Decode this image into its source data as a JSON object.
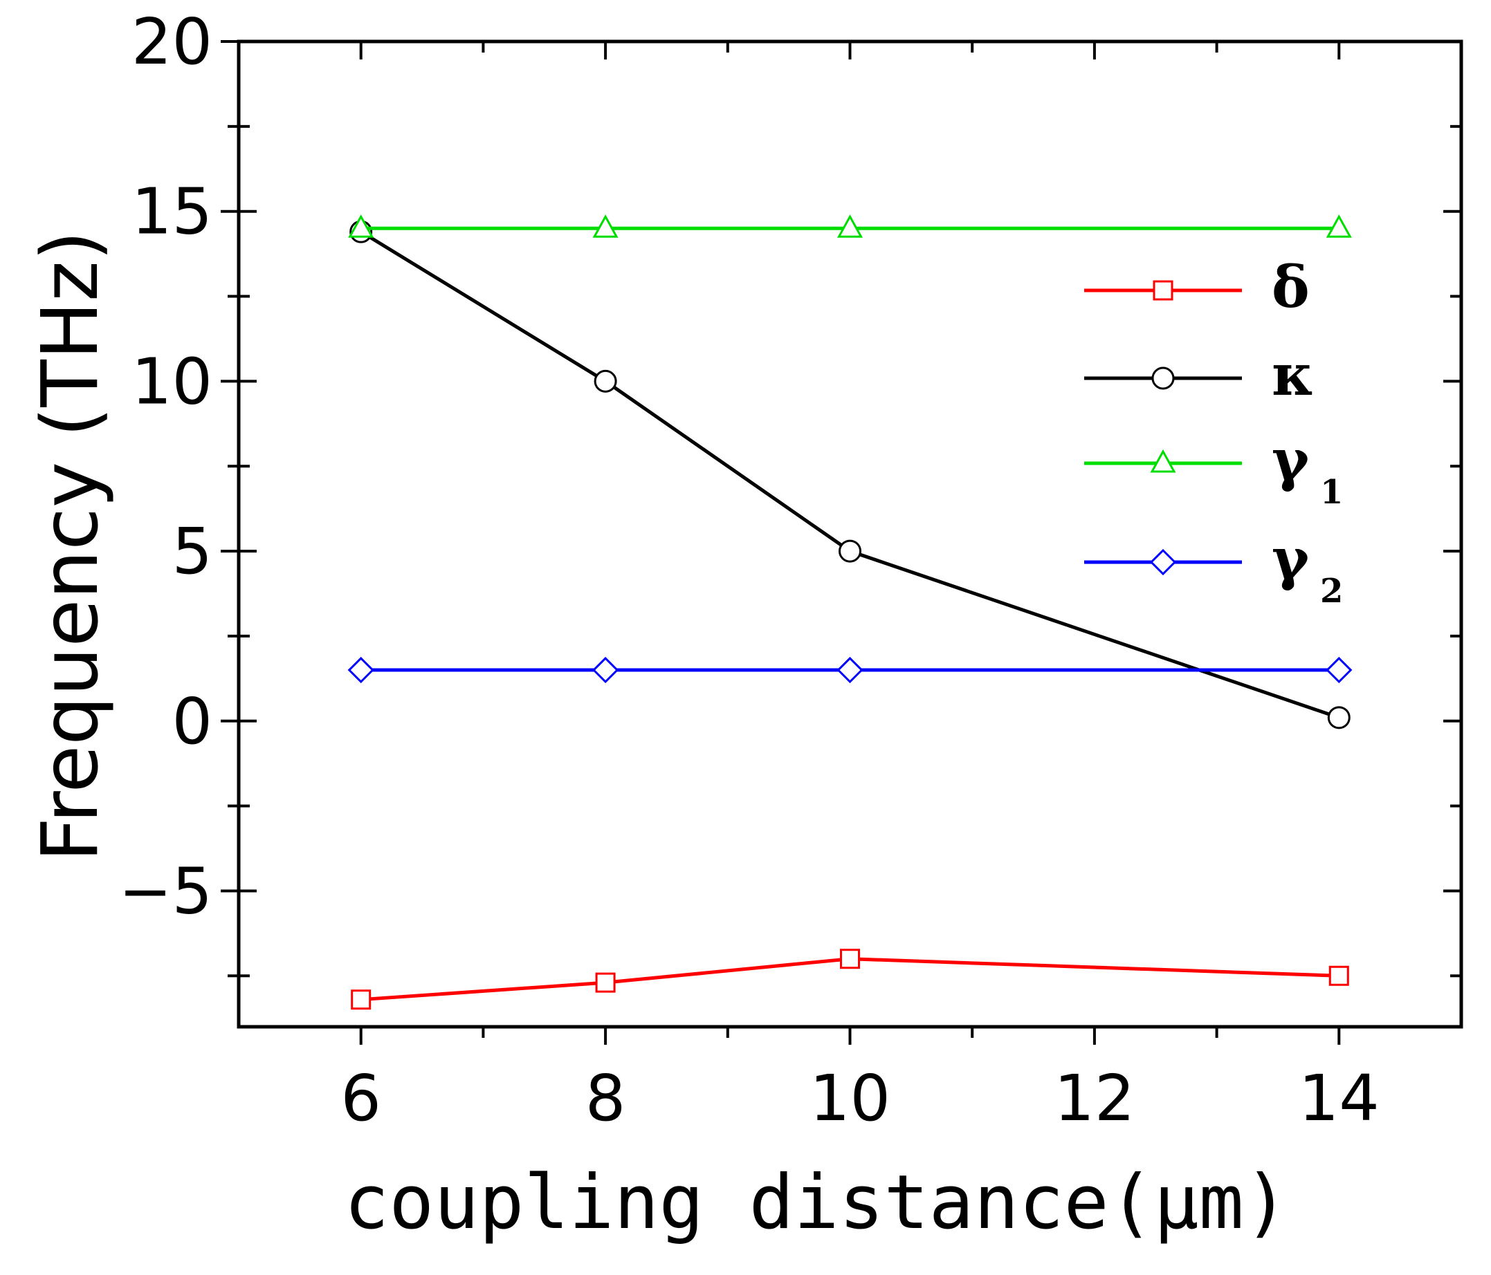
{
  "chart_data": {
    "type": "line",
    "xlabel": "coupling distance(μm)",
    "ylabel": "Frequency (THz)",
    "xlim": [
      5,
      15
    ],
    "ylim": [
      -9,
      20
    ],
    "xticks": [
      6,
      8,
      10,
      12,
      14
    ],
    "yticks": [
      -5,
      0,
      5,
      10,
      15,
      20
    ],
    "xtick_labels": [
      "6",
      "8",
      "10",
      "12",
      "14"
    ],
    "ytick_labels": [
      "−5",
      "0",
      "5",
      "10",
      "15",
      "20"
    ],
    "grid": false,
    "legend_position": "upper-right",
    "series": [
      {
        "name": "δ",
        "sub": "",
        "color": "#ff0000",
        "marker": "square",
        "x": [
          6,
          8,
          10,
          14
        ],
        "y": [
          -8.2,
          -7.7,
          -7.0,
          -7.5
        ]
      },
      {
        "name": "κ",
        "sub": "",
        "color": "#000000",
        "marker": "circle",
        "x": [
          6,
          8,
          10,
          14
        ],
        "y": [
          14.4,
          10.0,
          5.0,
          0.1
        ]
      },
      {
        "name": "γ",
        "sub": "1",
        "color": "#00dd00",
        "marker": "triangle",
        "x": [
          6,
          8,
          10,
          14
        ],
        "y": [
          14.5,
          14.5,
          14.5,
          14.5
        ]
      },
      {
        "name": "γ",
        "sub": "2",
        "color": "#0000ff",
        "marker": "diamond",
        "x": [
          6,
          8,
          10,
          14
        ],
        "y": [
          1.5,
          1.5,
          1.5,
          1.5
        ]
      }
    ]
  }
}
